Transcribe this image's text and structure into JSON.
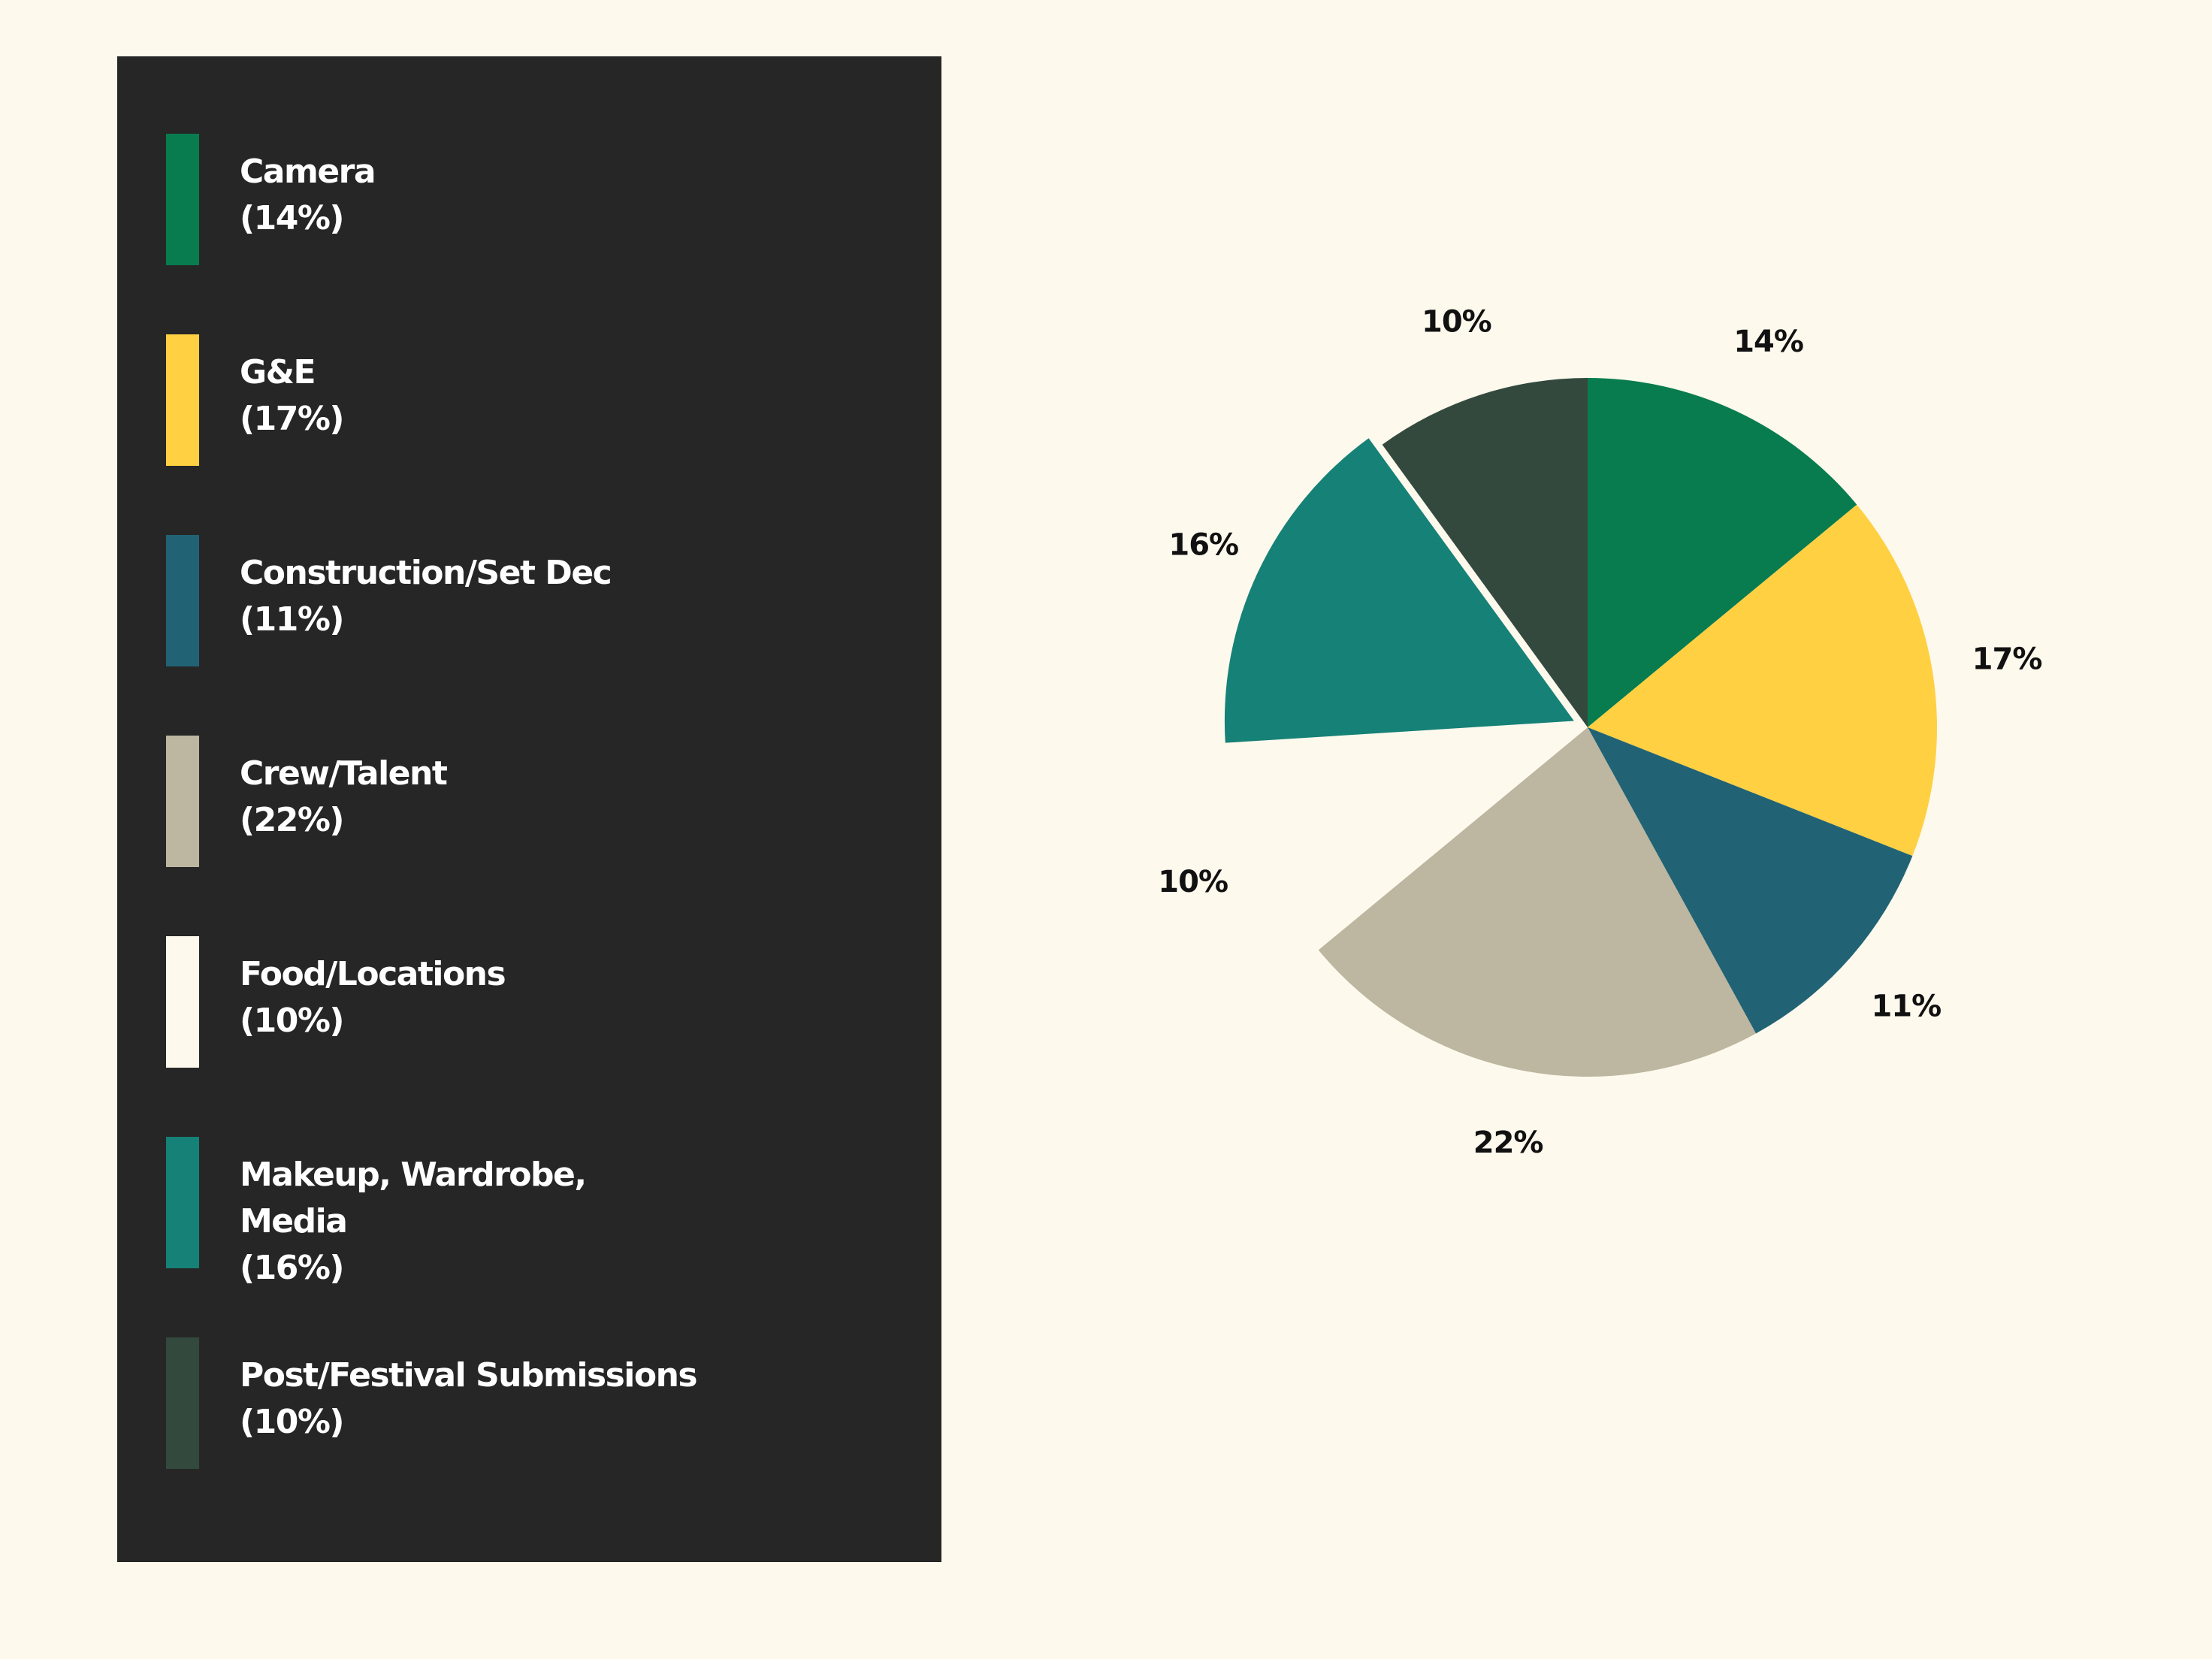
{
  "chart_data": {
    "type": "pie",
    "title": "",
    "slices": [
      {
        "name": "Camera",
        "legend_label": "Camera",
        "value": 14,
        "percent_label": "(14%)",
        "data_label": "14%",
        "color": "#087c4f",
        "exploded": false
      },
      {
        "name": "G&E",
        "legend_label": "G&E",
        "value": 17,
        "percent_label": "(17%)",
        "data_label": "17%",
        "color": "#ffd042",
        "exploded": false
      },
      {
        "name": "Construction/Set Dec",
        "legend_label": "Construction/Set Dec",
        "value": 11,
        "percent_label": "(11%)",
        "data_label": "11%",
        "color": "#216374",
        "exploded": false
      },
      {
        "name": "Crew/Talent",
        "legend_label": "Crew/Talent",
        "value": 22,
        "percent_label": "(22%)",
        "data_label": "22%",
        "color": "#bdb6a0",
        "exploded": false
      },
      {
        "name": "Food/Locations",
        "legend_label": "Food/Locations",
        "value": 10,
        "percent_label": "(10%)",
        "data_label": "10%",
        "color": "#fdf9ed",
        "exploded": false
      },
      {
        "name": "Makeup, Wardrobe, Media",
        "legend_label": "Makeup, Wardrobe,\nMedia",
        "value": 16,
        "percent_label": "(16%)",
        "data_label": "16%",
        "color": "#158177",
        "exploded": true
      },
      {
        "name": "Post/Festival Submissions",
        "legend_label": "Post/Festival Submissions",
        "value": 10,
        "percent_label": "(10%)",
        "data_label": "10%",
        "color": "#33493d",
        "exploded": false
      }
    ],
    "start_angle": "12 o'clock",
    "direction": "clockwise",
    "legend_position": "left"
  },
  "colors": {
    "background": "#fdf9ed",
    "legend_panel": "#262626",
    "legend_text": "#ffffff",
    "label_text": "#111111"
  }
}
